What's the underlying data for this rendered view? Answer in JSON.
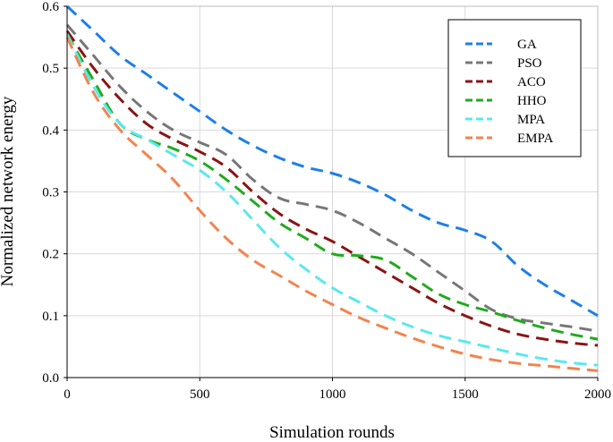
{
  "chart_data": {
    "type": "line",
    "title": "",
    "xlabel": "Simulation rounds",
    "ylabel": "Normalized network energy",
    "xlim": [
      0,
      2000
    ],
    "ylim": [
      0,
      0.6
    ],
    "xticks": [
      0,
      500,
      1000,
      1500,
      2000
    ],
    "xtick_labels": [
      "0",
      "500",
      "1000",
      "1500",
      "2000"
    ],
    "yticks": [
      0,
      0.1,
      0.2,
      0.3,
      0.4,
      0.5,
      0.6
    ],
    "ytick_labels": [
      "0.0",
      "0.1",
      "0.2",
      "0.3",
      "0.4",
      "0.5",
      "0.6"
    ],
    "grid": true,
    "legend_position": "top-right",
    "series": [
      {
        "name": "GA",
        "color": "#1e7fe6",
        "x": [
          0,
          100,
          200,
          300,
          400,
          500,
          600,
          700,
          800,
          900,
          1000,
          1100,
          1200,
          1300,
          1400,
          1500,
          1600,
          1700,
          1800,
          1900,
          2000
        ],
        "values": [
          0.6,
          0.56,
          0.52,
          0.49,
          0.46,
          0.43,
          0.4,
          0.375,
          0.355,
          0.34,
          0.33,
          0.315,
          0.295,
          0.27,
          0.25,
          0.238,
          0.22,
          0.18,
          0.15,
          0.125,
          0.1
        ]
      },
      {
        "name": "PSO",
        "color": "#777777",
        "x": [
          0,
          100,
          200,
          300,
          400,
          500,
          600,
          700,
          800,
          900,
          1000,
          1100,
          1200,
          1300,
          1400,
          1500,
          1600,
          1700,
          1800,
          1900,
          2000
        ],
        "values": [
          0.57,
          0.52,
          0.47,
          0.43,
          0.4,
          0.38,
          0.36,
          0.32,
          0.29,
          0.28,
          0.27,
          0.25,
          0.225,
          0.2,
          0.17,
          0.14,
          0.11,
          0.095,
          0.088,
          0.082,
          0.075
        ]
      },
      {
        "name": "ACO",
        "color": "#8b1414",
        "x": [
          0,
          100,
          200,
          300,
          400,
          500,
          600,
          700,
          800,
          900,
          1000,
          1100,
          1200,
          1300,
          1400,
          1500,
          1600,
          1700,
          1800,
          1900,
          2000
        ],
        "values": [
          0.56,
          0.5,
          0.45,
          0.41,
          0.385,
          0.365,
          0.34,
          0.3,
          0.265,
          0.24,
          0.22,
          0.195,
          0.17,
          0.145,
          0.12,
          0.1,
          0.083,
          0.07,
          0.062,
          0.056,
          0.052
        ]
      },
      {
        "name": "HHO",
        "color": "#22aa1e",
        "x": [
          0,
          100,
          200,
          300,
          400,
          500,
          600,
          700,
          800,
          900,
          1000,
          1100,
          1200,
          1300,
          1400,
          1500,
          1600,
          1700,
          1800,
          1900,
          2000
        ],
        "values": [
          0.555,
          0.48,
          0.41,
          0.385,
          0.37,
          0.35,
          0.32,
          0.285,
          0.25,
          0.225,
          0.2,
          0.197,
          0.19,
          0.163,
          0.135,
          0.118,
          0.106,
          0.092,
          0.08,
          0.07,
          0.062
        ]
      },
      {
        "name": "MPA",
        "color": "#5ae8ee",
        "x": [
          0,
          100,
          200,
          300,
          400,
          500,
          600,
          700,
          800,
          900,
          1000,
          1100,
          1200,
          1300,
          1400,
          1500,
          1600,
          1700,
          1800,
          1900,
          2000
        ],
        "values": [
          0.555,
          0.47,
          0.41,
          0.385,
          0.36,
          0.335,
          0.3,
          0.255,
          0.21,
          0.175,
          0.145,
          0.122,
          0.1,
          0.082,
          0.068,
          0.058,
          0.048,
          0.038,
          0.03,
          0.024,
          0.02
        ]
      },
      {
        "name": "EMPA",
        "color": "#f2844e",
        "x": [
          0,
          100,
          200,
          300,
          400,
          500,
          600,
          700,
          800,
          900,
          1000,
          1100,
          1200,
          1300,
          1400,
          1500,
          1600,
          1700,
          1800,
          1900,
          2000
        ],
        "values": [
          0.55,
          0.46,
          0.4,
          0.36,
          0.32,
          0.27,
          0.225,
          0.19,
          0.165,
          0.14,
          0.118,
          0.097,
          0.08,
          0.064,
          0.05,
          0.038,
          0.029,
          0.023,
          0.019,
          0.015,
          0.011
        ]
      }
    ]
  }
}
